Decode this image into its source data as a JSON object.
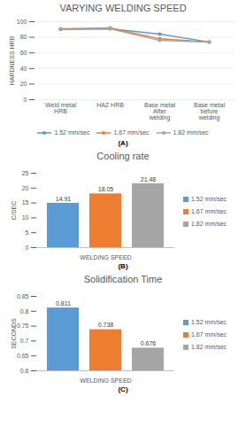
{
  "chart_data": [
    {
      "type": "line",
      "title": "VARYING WELDING SPEED",
      "ylabel": "HARDNESS HRB",
      "categories": [
        "Weld metal HRB",
        "HAZ HRB",
        "Base metal After welding",
        "Base metal before welding"
      ],
      "series": [
        {
          "name": "1.52 mm/sec",
          "color": "#5b9bd5",
          "marker": "circle",
          "values": [
            90,
            91,
            84,
            74
          ]
        },
        {
          "name": "1.67 mm/sec",
          "color": "#ed7d31",
          "marker": "circle",
          "values": [
            91,
            92,
            78,
            74
          ]
        },
        {
          "name": "1.82 mm/sec",
          "color": "#a5a5a5",
          "marker": "circle",
          "values": [
            90,
            91,
            76,
            74
          ]
        }
      ],
      "ylim": [
        0,
        100
      ],
      "yticks": [
        0,
        20,
        40,
        60,
        80,
        100
      ],
      "grid": true,
      "legend": "bottom",
      "annotations": [
        "(A)"
      ]
    },
    {
      "type": "bar",
      "title": "Cooling rate",
      "ylabel": "C/SEC",
      "categories": [
        "WELDING SPEED"
      ],
      "series": [
        {
          "name": "1.52 mm/sec",
          "color": "#5b9bd5",
          "values": [
            14.91
          ]
        },
        {
          "name": "1.67 mm/sec",
          "color": "#ed7d31",
          "values": [
            18.05
          ]
        },
        {
          "name": "1.82 mm/sec",
          "color": "#a5a5a5",
          "values": [
            21.48
          ]
        }
      ],
      "ylim": [
        0,
        25
      ],
      "yticks": [
        0,
        5,
        10,
        15,
        20,
        25
      ],
      "grid": false,
      "legend": "right",
      "data_labels": true,
      "annotations": [
        "(B)"
      ]
    },
    {
      "type": "bar",
      "title": "Solidification Time",
      "ylabel": "SECONDS",
      "categories": [
        "WELDING SPEED"
      ],
      "series": [
        {
          "name": "1.52 mm/sec",
          "color": "#5b9bd5",
          "values": [
            0.811
          ]
        },
        {
          "name": "1.67 mm/sec",
          "color": "#ed7d31",
          "values": [
            0.738
          ]
        },
        {
          "name": "1.82 mm/sec",
          "color": "#a5a5a5",
          "values": [
            0.676
          ]
        }
      ],
      "ylim": [
        0.6,
        0.85
      ],
      "yticks": [
        0.6,
        0.65,
        0.7,
        0.75,
        0.8,
        0.85
      ],
      "grid": false,
      "legend": "right",
      "data_labels": true,
      "annotations": [
        "(C)"
      ]
    }
  ]
}
